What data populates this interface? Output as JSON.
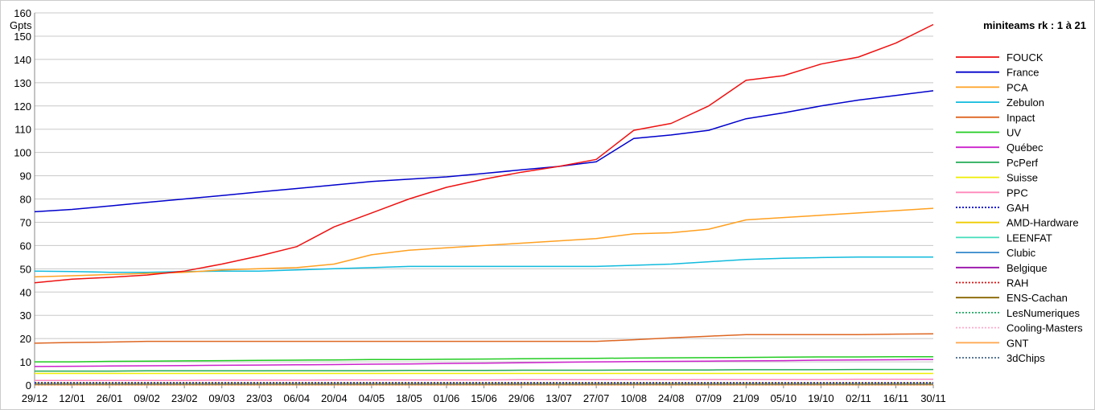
{
  "chart_data": {
    "type": "line",
    "title": "miniteams rk : 1 à 21",
    "xlabel": "",
    "ylabel": "Gpts",
    "ylim": [
      0,
      160
    ],
    "yticks": [
      0,
      10,
      20,
      30,
      40,
      50,
      60,
      70,
      80,
      90,
      100,
      110,
      120,
      130,
      140,
      150,
      160
    ],
    "grid": true,
    "legend_position": "right",
    "categories": [
      "29/12",
      "12/01",
      "26/01",
      "09/02",
      "23/02",
      "09/03",
      "23/03",
      "06/04",
      "20/04",
      "04/05",
      "18/05",
      "01/06",
      "15/06",
      "29/06",
      "13/07",
      "27/07",
      "10/08",
      "24/08",
      "07/09",
      "21/09",
      "05/10",
      "19/10",
      "02/11",
      "16/11",
      "30/11"
    ],
    "series": [
      {
        "name": "FOUCK",
        "color": "#ee1111",
        "style": "solid",
        "values": [
          44,
          45.5,
          46.3,
          47.3,
          49,
          52,
          55.5,
          59.5,
          68,
          74,
          80,
          85,
          88.5,
          91.5,
          94,
          97,
          109.5,
          112.5,
          120,
          131,
          133,
          138,
          141,
          147,
          155
        ]
      },
      {
        "name": "France",
        "color": "#0000cc",
        "style": "solid",
        "values": [
          74.5,
          75.5,
          77,
          78.5,
          80,
          81.5,
          83,
          84.5,
          86,
          87.5,
          88.5,
          89.5,
          91,
          92.5,
          94,
          96,
          106,
          107.5,
          109.5,
          114.5,
          117,
          120,
          122.5,
          124.5,
          126.5
        ]
      },
      {
        "name": "PCA",
        "color": "#ffa020",
        "style": "solid",
        "values": [
          46.5,
          47,
          47.5,
          48,
          48.5,
          49.5,
          50,
          50.5,
          52,
          56,
          58,
          59,
          60,
          61,
          62,
          63,
          65,
          65.5,
          67,
          71,
          72,
          73,
          74,
          75,
          76
        ]
      },
      {
        "name": "Zebulon",
        "color": "#11bbdd",
        "style": "solid",
        "values": [
          49,
          48.8,
          48.5,
          48.5,
          48.8,
          49,
          49,
          49.5,
          50,
          50.5,
          51,
          51,
          51,
          51,
          51,
          51,
          51.5,
          52,
          53,
          54,
          54.5,
          54.8,
          55,
          55,
          55
        ]
      },
      {
        "name": "Inpact",
        "color": "#dd6622",
        "style": "solid",
        "values": [
          18,
          18.3,
          18.5,
          18.8,
          18.8,
          18.8,
          18.8,
          18.8,
          18.8,
          18.8,
          18.8,
          18.8,
          18.8,
          18.8,
          18.8,
          18.8,
          19.5,
          20.3,
          21,
          21.7,
          21.7,
          21.7,
          21.7,
          21.9,
          22
        ]
      },
      {
        "name": "UV",
        "color": "#22cc22",
        "style": "solid",
        "values": [
          10,
          10,
          10.2,
          10.3,
          10.4,
          10.5,
          10.6,
          10.7,
          10.8,
          11,
          11,
          11.1,
          11.2,
          11.3,
          11.4,
          11.5,
          11.6,
          11.7,
          11.8,
          11.9,
          12,
          12.1,
          12.1,
          12.2,
          12.2
        ]
      },
      {
        "name": "Québec",
        "color": "#cc22cc",
        "style": "solid",
        "values": [
          8,
          8.1,
          8.2,
          8.3,
          8.4,
          8.5,
          8.6,
          8.7,
          8.8,
          9,
          9.1,
          9.3,
          9.4,
          9.6,
          9.8,
          10,
          10.1,
          10.2,
          10.3,
          10.4,
          10.5,
          10.7,
          10.8,
          10.9,
          11
        ]
      },
      {
        "name": "PcPerf",
        "color": "#22aa55",
        "style": "solid",
        "values": [
          6,
          6,
          6,
          6.1,
          6.1,
          6.1,
          6.1,
          6.2,
          6.2,
          6.2,
          6.3,
          6.3,
          6.3,
          6.4,
          6.4,
          6.4,
          6.5,
          6.5,
          6.5,
          6.6,
          6.6,
          6.6,
          6.7,
          6.7,
          6.7
        ]
      },
      {
        "name": "Suisse",
        "color": "#eeee00",
        "style": "solid",
        "values": [
          5,
          5,
          5,
          5,
          5,
          5,
          5,
          5,
          5,
          5,
          5,
          5,
          5,
          5,
          5,
          5,
          5,
          5,
          5,
          5,
          5,
          5,
          5,
          5,
          5
        ]
      },
      {
        "name": "PPC",
        "color": "#ff88bb",
        "style": "solid",
        "values": [
          2,
          2,
          2,
          2,
          2,
          2.1,
          2.1,
          2.1,
          2.2,
          2.2,
          2.2,
          2.2,
          2.2,
          2.3,
          2.3,
          2.3,
          2.3,
          2.3,
          2.4,
          2.4,
          2.4,
          2.4,
          2.5,
          2.5,
          2.5
        ]
      },
      {
        "name": "GAH",
        "color": "#0000cc",
        "style": "dotted",
        "values": [
          1,
          1,
          1,
          1,
          1,
          1,
          1,
          1,
          1,
          1,
          1,
          1,
          1,
          1,
          1,
          1,
          1,
          1,
          1,
          1,
          1,
          1,
          1,
          1,
          1
        ]
      },
      {
        "name": "AMD-Hardware",
        "color": "#eecc00",
        "style": "solid",
        "values": [
          0.9,
          0.9,
          0.9,
          0.9,
          0.9,
          0.9,
          0.9,
          0.9,
          0.9,
          0.9,
          0.9,
          0.9,
          0.9,
          0.9,
          0.9,
          0.9,
          0.9,
          0.9,
          0.9,
          0.9,
          0.9,
          0.9,
          0.9,
          0.9,
          0.9
        ]
      },
      {
        "name": "LEENFAT",
        "color": "#44ddbb",
        "style": "solid",
        "values": [
          0.8,
          0.8,
          0.8,
          0.8,
          0.8,
          0.8,
          0.8,
          0.8,
          0.8,
          0.8,
          0.8,
          0.8,
          0.8,
          0.8,
          0.8,
          0.8,
          0.8,
          0.8,
          0.8,
          0.8,
          0.8,
          0.8,
          0.8,
          0.8,
          0.8
        ]
      },
      {
        "name": "Clubic",
        "color": "#3388cc",
        "style": "solid",
        "values": [
          0.7,
          0.7,
          0.7,
          0.7,
          0.7,
          0.7,
          0.7,
          0.7,
          0.7,
          0.7,
          0.7,
          0.7,
          0.7,
          0.7,
          0.7,
          0.7,
          0.7,
          0.7,
          0.7,
          0.7,
          0.7,
          0.7,
          0.7,
          0.7,
          0.7
        ]
      },
      {
        "name": "Belgique",
        "color": "#9911aa",
        "style": "solid",
        "values": [
          0.6,
          0.6,
          0.6,
          0.6,
          0.6,
          0.6,
          0.6,
          0.6,
          0.6,
          0.6,
          0.6,
          0.6,
          0.6,
          0.6,
          0.6,
          0.6,
          0.6,
          0.6,
          0.6,
          0.6,
          0.6,
          0.6,
          0.6,
          0.6,
          0.6
        ]
      },
      {
        "name": "RAH",
        "color": "#dd1111",
        "style": "dotted",
        "values": [
          0.5,
          0.5,
          0.5,
          0.5,
          0.5,
          0.5,
          0.5,
          0.5,
          0.5,
          0.5,
          0.5,
          0.5,
          0.5,
          0.5,
          0.5,
          0.5,
          0.5,
          0.5,
          0.5,
          0.5,
          0.5,
          0.5,
          0.5,
          0.5,
          0.5
        ]
      },
      {
        "name": "ENS-Cachan",
        "color": "#886600",
        "style": "solid",
        "values": [
          0.4,
          0.4,
          0.4,
          0.4,
          0.4,
          0.4,
          0.4,
          0.4,
          0.4,
          0.4,
          0.4,
          0.4,
          0.4,
          0.4,
          0.4,
          0.4,
          0.4,
          0.4,
          0.4,
          0.4,
          0.4,
          0.4,
          0.4,
          0.4,
          0.4
        ]
      },
      {
        "name": "LesNumeriques",
        "color": "#22aa66",
        "style": "dotted",
        "values": [
          0.3,
          0.3,
          0.3,
          0.3,
          0.3,
          0.3,
          0.3,
          0.3,
          0.3,
          0.3,
          0.3,
          0.3,
          0.3,
          0.3,
          0.3,
          0.3,
          0.3,
          0.3,
          0.3,
          0.3,
          0.3,
          0.3,
          0.3,
          0.3,
          0.3
        ]
      },
      {
        "name": "Cooling-Masters",
        "color": "#ffaacc",
        "style": "dotted",
        "values": [
          0.2,
          0.2,
          0.2,
          0.2,
          0.2,
          0.2,
          0.2,
          0.2,
          0.2,
          0.2,
          0.2,
          0.2,
          0.2,
          0.2,
          0.2,
          0.2,
          0.2,
          0.2,
          0.2,
          0.2,
          0.2,
          0.2,
          0.2,
          0.2,
          0.2
        ]
      },
      {
        "name": "GNT",
        "color": "#ffaa55",
        "style": "solid",
        "values": [
          0.1,
          0.1,
          0.1,
          0.1,
          0.1,
          0.1,
          0.1,
          0.1,
          0.1,
          0.1,
          0.1,
          0.1,
          0.1,
          0.1,
          0.1,
          0.1,
          0.1,
          0.1,
          0.1,
          0.1,
          0.1,
          0.1,
          0.1,
          0.1,
          0.1
        ]
      },
      {
        "name": "3dChips",
        "color": "#446688",
        "style": "dotted",
        "values": [
          0.05,
          0.05,
          0.05,
          0.05,
          0.05,
          0.05,
          0.05,
          0.05,
          0.05,
          0.05,
          0.05,
          0.05,
          0.05,
          0.05,
          0.05,
          0.05,
          0.05,
          0.05,
          0.05,
          0.05,
          0.05,
          0.05,
          0.05,
          0.05,
          0.05
        ]
      }
    ]
  }
}
